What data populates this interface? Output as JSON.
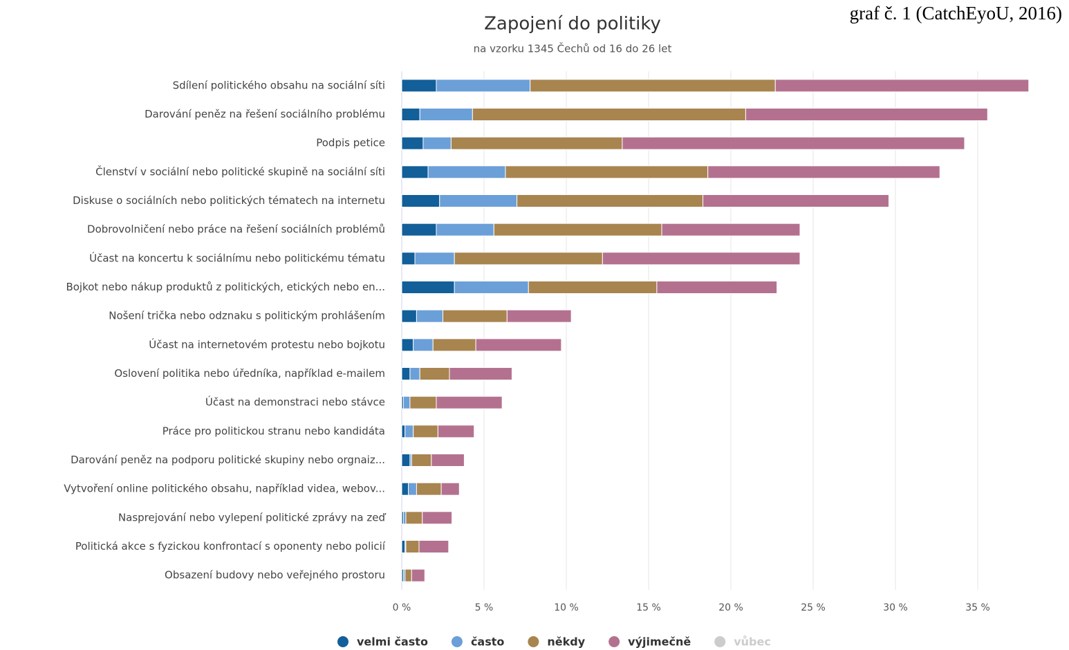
{
  "source_note": "graf č. 1 (CatchEyoU, 2016)",
  "chart_data": {
    "type": "stacked-bar-horizontal",
    "title": "Zapojení do politiky",
    "subtitle": "na vzorku 1345 Čechů od 16 do 26 let",
    "categories": [
      "Sdílení politického obsahu na sociální síti",
      "Darování peněz na řešení sociálního problému",
      "Podpis petice",
      "Členství v sociální nebo politické skupině na sociální síti",
      "Diskuse o sociálních nebo politických tématech na internetu",
      "Dobrovolničení nebo práce na řešení sociálních problémů",
      "Účast na koncertu k sociálnímu nebo politickému tématu",
      "Bojkot nebo nákup produktů z politických, etických nebo en...",
      "Nošení trička nebo odznaku s politickým prohlášením",
      "Účast na internetovém protestu nebo bojkotu",
      "Oslovení politika nebo úředníka, například e-mailem",
      "Účast na demonstraci nebo stávce",
      "Práce pro politickou stranu nebo kandidáta",
      "Darování peněz na podporu politické skupiny nebo orgnaiz...",
      "Vytvoření online politického obsahu, například videa, webov...",
      "Nasprejování nebo vylepení politické zprávy na zeď",
      "Politická akce s fyzickou konfrontací s oponenty nebo policií",
      "Obsazení budovy nebo veřejného prostoru"
    ],
    "series": [
      {
        "name": "velmi často",
        "color": "#125f99",
        "values": [
          2.1,
          1.1,
          1.3,
          1.6,
          2.3,
          2.1,
          0.8,
          3.2,
          0.9,
          0.7,
          0.5,
          0.1,
          0.2,
          0.5,
          0.4,
          0.1,
          0.2,
          0.1
        ]
      },
      {
        "name": "často",
        "color": "#6b9fd8",
        "values": [
          5.7,
          3.2,
          1.7,
          4.7,
          4.7,
          3.5,
          2.4,
          4.5,
          1.6,
          1.2,
          0.6,
          0.4,
          0.5,
          0.1,
          0.5,
          0.15,
          0.05,
          0.1
        ]
      },
      {
        "name": "někdy",
        "color": "#a8844f",
        "values": [
          14.9,
          16.6,
          10.4,
          12.3,
          11.3,
          10.2,
          9.0,
          7.8,
          3.9,
          2.6,
          1.8,
          1.6,
          1.5,
          1.2,
          1.5,
          1.0,
          0.8,
          0.4
        ]
      },
      {
        "name": "výjimečně",
        "color": "#b4718f",
        "values": [
          15.4,
          14.7,
          20.8,
          14.1,
          11.3,
          8.4,
          12.0,
          7.3,
          3.9,
          5.2,
          3.8,
          4.0,
          2.2,
          2.0,
          1.1,
          1.8,
          1.8,
          0.8
        ]
      },
      {
        "name": "vůbec",
        "color": "#cccccc",
        "visible": false,
        "values": [
          null,
          null,
          null,
          null,
          null,
          null,
          null,
          null,
          null,
          null,
          null,
          null,
          null,
          null,
          null,
          null,
          null,
          null
        ]
      }
    ],
    "xlim": [
      0,
      38.5
    ],
    "xticks": [
      {
        "value": 0,
        "label": "0 %"
      },
      {
        "value": 5,
        "label": "5 %"
      },
      {
        "value": 10,
        "label": "10 %"
      },
      {
        "value": 15,
        "label": "15 %"
      },
      {
        "value": 20,
        "label": "20 %"
      },
      {
        "value": 25,
        "label": "25 %"
      },
      {
        "value": 30,
        "label": "30 %"
      },
      {
        "value": 35,
        "label": "35 %"
      }
    ],
    "grid": true,
    "legend": "bottom"
  }
}
